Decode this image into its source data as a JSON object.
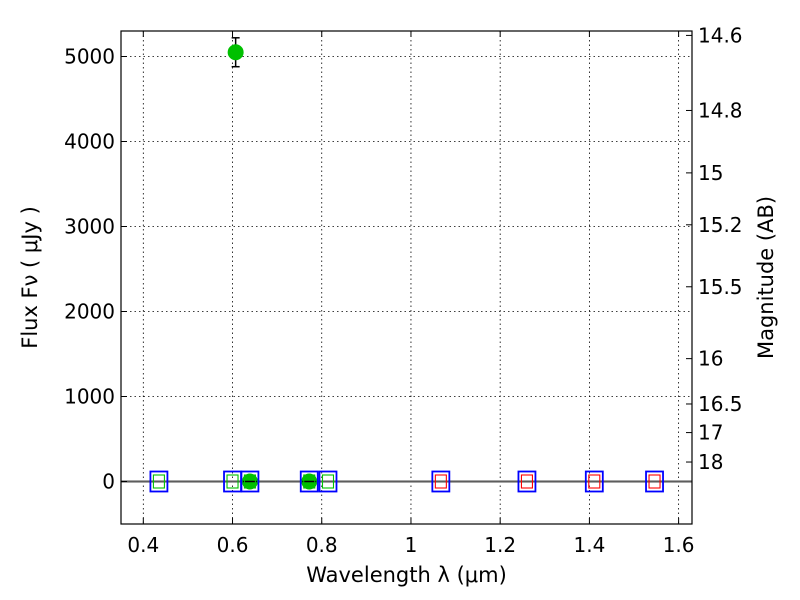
{
  "chart_data": {
    "type": "scatter",
    "title": "",
    "xlabel": "Wavelength  λ (μm)",
    "ylabel": "Flux  Fν  ( μJy )",
    "y2label": "Magnitude (AB)",
    "xlim": [
      0.35,
      1.63
    ],
    "ylim": [
      -500,
      5300
    ],
    "grid": true,
    "xticks": [
      "0.4",
      "0.6",
      "0.8",
      "1",
      "1.2",
      "1.4",
      "1.6"
    ],
    "xtick_values": [
      0.4,
      0.6,
      0.8,
      1.0,
      1.2,
      1.4,
      1.6
    ],
    "yticks": [
      "0",
      "1000",
      "2000",
      "3000",
      "4000",
      "5000"
    ],
    "ytick_values": [
      0,
      1000,
      2000,
      3000,
      4000,
      5000
    ],
    "y2ticks": [
      "14.6",
      "14.8",
      "15",
      "15.2",
      "15.5",
      "16",
      "16.5",
      "17",
      "18"
    ],
    "y2tick_mags": [
      14.6,
      14.8,
      15.0,
      15.2,
      15.5,
      16.0,
      16.5,
      17.0,
      18.0
    ],
    "hline_y": 0,
    "series": [
      {
        "marker": "circle",
        "color": "#00c000",
        "points": [
          {
            "x": 0.607,
            "y": 5050,
            "yerr": 170
          },
          {
            "x": 0.639,
            "y": 0,
            "yerr": 0
          },
          {
            "x": 0.772,
            "y": 0,
            "yerr": 0
          }
        ]
      },
      {
        "marker": "square",
        "edge_color": "#0000ff",
        "inner_color": "#00c000",
        "points": [
          {
            "x": 0.435,
            "y": 0
          },
          {
            "x": 0.6,
            "y": 0
          },
          {
            "x": 0.639,
            "y": 0
          },
          {
            "x": 0.772,
            "y": 0
          },
          {
            "x": 0.814,
            "y": 0
          }
        ]
      },
      {
        "marker": "square",
        "edge_color": "#0000ff",
        "inner_color": "#ff0000",
        "points": [
          {
            "x": 1.067,
            "y": 0
          },
          {
            "x": 1.26,
            "y": 0
          },
          {
            "x": 1.411,
            "y": 0
          },
          {
            "x": 1.546,
            "y": 0
          }
        ]
      }
    ]
  }
}
